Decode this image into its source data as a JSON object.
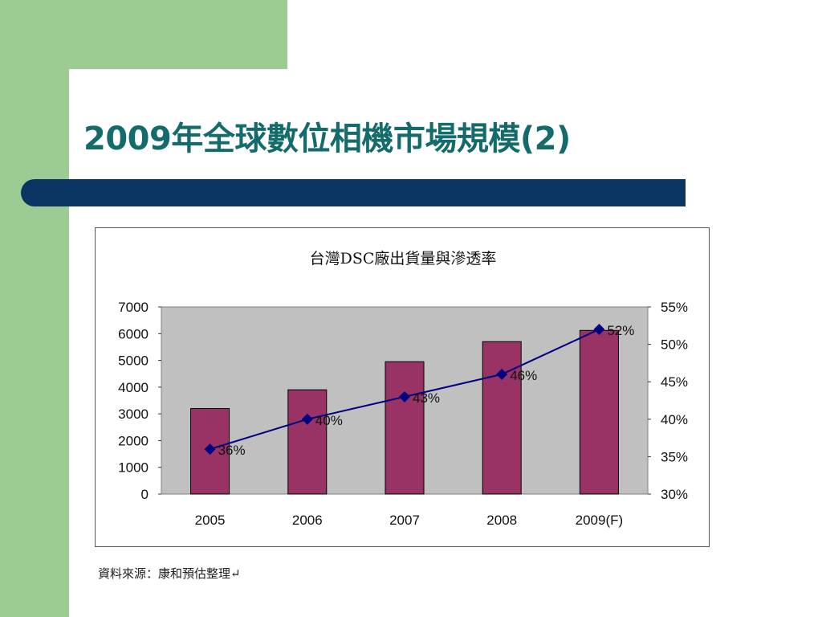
{
  "slide": {
    "title": "2009年全球數位相機市場規模(2)",
    "source": "資料來源：康和預估整理↵"
  },
  "colors": {
    "title": "#136b6b",
    "band": "#0a3562",
    "accent_green": "#9ccc94",
    "bar": "#993366",
    "line": "#000080",
    "plot_bg": "#c0c0c0"
  },
  "chart_data": {
    "type": "bar",
    "title": "台灣DSC廠出貨量與滲透率",
    "categories": [
      "2005",
      "2006",
      "2007",
      "2008",
      "2009(F)"
    ],
    "series": [
      {
        "values": [
          3200,
          3900,
          4950,
          5700,
          6120
        ],
        "axis": "left",
        "kind": "bar"
      },
      {
        "values": [
          36,
          40,
          43,
          46,
          52
        ],
        "axis": "right",
        "kind": "line",
        "labels": [
          "36%",
          "40%",
          "43%",
          "46%",
          "52%"
        ]
      }
    ],
    "ylim": [
      0,
      7000
    ],
    "yticks": [
      "0",
      "1000",
      "2000",
      "3000",
      "4000",
      "5000",
      "6000",
      "7000"
    ],
    "y2lim": [
      30,
      55
    ],
    "y2ticks": [
      "30%",
      "35%",
      "40%",
      "45%",
      "50%",
      "55%"
    ],
    "grid": false
  }
}
